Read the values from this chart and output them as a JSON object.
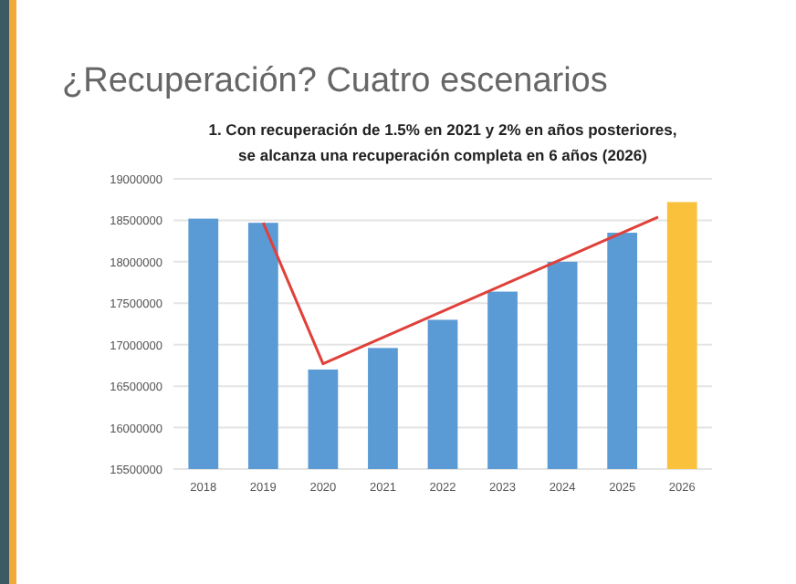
{
  "chart_data": {
    "type": "bar",
    "title": "¿Recuperación? Cuatro escenarios",
    "subtitle": "1. Con recuperación de 1.5% en 2021 y 2% en años posteriores,\nse alcanza una recuperación completa en 6 años (2026)",
    "x": [
      2018,
      2019,
      2020,
      2021,
      2022,
      2023,
      2024,
      2025,
      2026
    ],
    "xlim": [
      2017.5,
      2026.5
    ],
    "xticks": [
      2018,
      2019,
      2020,
      2021,
      2022,
      2023,
      2024,
      2025,
      2026
    ],
    "series": [
      {
        "colors": [
          "#5b9bd5",
          "#5b9bd5",
          "#5b9bd5",
          "#5b9bd5",
          "#5b9bd5",
          "#5b9bd5",
          "#5b9bd5",
          "#5b9bd5",
          "#f9c13c"
        ],
        "values": [
          18520000,
          18470000,
          16700000,
          16960000,
          17300000,
          17640000,
          18000000,
          18350000,
          18720000
        ]
      },
      {
        "type": "line",
        "color": "#e0403a",
        "x": [
          2019,
          2020,
          2025.6
        ],
        "values": [
          18470000,
          16770000,
          18540000
        ]
      }
    ],
    "ylim": [
      15500000,
      19000000
    ],
    "yticks": [
      15500000,
      16000000,
      16500000,
      17000000,
      17500000,
      18000000,
      18500000,
      19000000
    ],
    "grid": "y"
  }
}
